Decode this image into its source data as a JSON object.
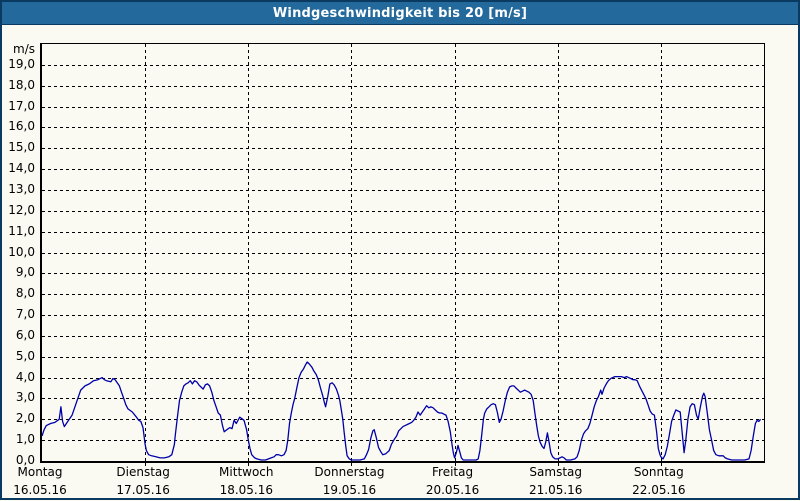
{
  "window": {
    "title": "Windgeschwindigkeit bis 20 [m/s]"
  },
  "colors": {
    "window_border": "#0a3a5f",
    "titlebar": "#23699b",
    "background": "#fafaf2",
    "line": "#0000aa",
    "grid": "#000000"
  },
  "chart_data": {
    "type": "line",
    "title": "Windgeschwindigkeit bis 20 [m/s]",
    "unit_label": "m/s",
    "xlabel": "",
    "ylabel": "m/s",
    "ylim": [
      0,
      20
    ],
    "y_tick_step": 1,
    "y_tick_labels": [
      "0,0",
      "1,0",
      "2,0",
      "3,0",
      "4,0",
      "5,0",
      "6,0",
      "7,0",
      "8,0",
      "9,0",
      "10,0",
      "11,0",
      "12,0",
      "13,0",
      "14,0",
      "15,0",
      "16,0",
      "17,0",
      "18,0",
      "19,0"
    ],
    "grid": "dashed horizontal every 1 m/s, dashed vertical at each day boundary",
    "legend": "none",
    "x_days": [
      {
        "name": "Montag",
        "date": "16.05.16"
      },
      {
        "name": "Dienstag",
        "date": "17.05.16"
      },
      {
        "name": "Mittwoch",
        "date": "18.05.16"
      },
      {
        "name": "Donnerstag",
        "date": "19.05.16"
      },
      {
        "name": "Freitag",
        "date": "20.05.16"
      },
      {
        "name": "Samstag",
        "date": "21.05.16"
      },
      {
        "name": "Sonntag",
        "date": "22.05.16"
      }
    ],
    "x_range_hours": [
      0,
      168
    ],
    "series": [
      {
        "name": "Windgeschwindigkeit",
        "color": "#0000aa",
        "points": [
          [
            0,
            1.2
          ],
          [
            0.5,
            1.5
          ],
          [
            1,
            1.7
          ],
          [
            2,
            1.8
          ],
          [
            3,
            1.85
          ],
          [
            4,
            2.0
          ],
          [
            4.4,
            2.6
          ],
          [
            4.8,
            1.9
          ],
          [
            5.2,
            1.65
          ],
          [
            6,
            1.9
          ],
          [
            7,
            2.2
          ],
          [
            8,
            2.8
          ],
          [
            9,
            3.4
          ],
          [
            10,
            3.6
          ],
          [
            11,
            3.7
          ],
          [
            12,
            3.85
          ],
          [
            13,
            3.9
          ],
          [
            14,
            4.0
          ],
          [
            14.5,
            3.9
          ],
          [
            15,
            3.85
          ],
          [
            16,
            3.8
          ],
          [
            16.5,
            3.95
          ],
          [
            17,
            3.9
          ],
          [
            18,
            3.6
          ],
          [
            18.5,
            3.3
          ],
          [
            19,
            3.0
          ],
          [
            19.5,
            2.7
          ],
          [
            20,
            2.5
          ],
          [
            21,
            2.35
          ],
          [
            22,
            2.1
          ],
          [
            22.5,
            1.95
          ],
          [
            23,
            1.9
          ],
          [
            23.5,
            1.6
          ],
          [
            24,
            0.8
          ],
          [
            24.3,
            0.5
          ],
          [
            24.8,
            0.3
          ],
          [
            25.5,
            0.25
          ],
          [
            26.5,
            0.2
          ],
          [
            27.5,
            0.15
          ],
          [
            28.5,
            0.15
          ],
          [
            29.5,
            0.2
          ],
          [
            30.2,
            0.3
          ],
          [
            30.8,
            0.8
          ],
          [
            31,
            1.2
          ],
          [
            31.5,
            2.1
          ],
          [
            32,
            2.9
          ],
          [
            32.5,
            3.3
          ],
          [
            33,
            3.6
          ],
          [
            33.5,
            3.7
          ],
          [
            34,
            3.75
          ],
          [
            34.5,
            3.85
          ],
          [
            35,
            3.7
          ],
          [
            35.5,
            3.85
          ],
          [
            36,
            3.8
          ],
          [
            36.5,
            3.65
          ],
          [
            37,
            3.55
          ],
          [
            37.5,
            3.45
          ],
          [
            38,
            3.65
          ],
          [
            38.5,
            3.7
          ],
          [
            39,
            3.6
          ],
          [
            39.5,
            3.3
          ],
          [
            40,
            2.9
          ],
          [
            40.5,
            2.6
          ],
          [
            41,
            2.3
          ],
          [
            41.5,
            2.2
          ],
          [
            42,
            1.7
          ],
          [
            42.4,
            1.4
          ],
          [
            43,
            1.5
          ],
          [
            43.7,
            1.6
          ],
          [
            44.2,
            1.55
          ],
          [
            44.7,
            1.95
          ],
          [
            45.2,
            1.8
          ],
          [
            46,
            2.1
          ],
          [
            46.4,
            2.05
          ],
          [
            47,
            1.95
          ],
          [
            47.6,
            1.5
          ],
          [
            48,
            1.0
          ],
          [
            48.4,
            0.6
          ],
          [
            48.8,
            0.3
          ],
          [
            49.5,
            0.15
          ],
          [
            50,
            0.1
          ],
          [
            51,
            0.05
          ],
          [
            52,
            0.05
          ],
          [
            52.7,
            0.1
          ],
          [
            53.3,
            0.15
          ],
          [
            54,
            0.2
          ],
          [
            54.5,
            0.3
          ],
          [
            55,
            0.3
          ],
          [
            55.7,
            0.25
          ],
          [
            56.3,
            0.3
          ],
          [
            56.8,
            0.5
          ],
          [
            57.2,
            1.0
          ],
          [
            57.6,
            1.8
          ],
          [
            58,
            2.3
          ],
          [
            58.4,
            2.7
          ],
          [
            58.8,
            3.0
          ],
          [
            59.3,
            3.5
          ],
          [
            59.8,
            4.0
          ],
          [
            60.3,
            4.25
          ],
          [
            60.8,
            4.4
          ],
          [
            61.3,
            4.6
          ],
          [
            61.7,
            4.75
          ],
          [
            62.2,
            4.65
          ],
          [
            62.8,
            4.5
          ],
          [
            63.3,
            4.3
          ],
          [
            63.8,
            4.15
          ],
          [
            64.3,
            3.9
          ],
          [
            64.8,
            3.5
          ],
          [
            65.3,
            3.15
          ],
          [
            65.7,
            2.8
          ],
          [
            66,
            2.6
          ],
          [
            66.5,
            3.1
          ],
          [
            67,
            3.7
          ],
          [
            67.5,
            3.75
          ],
          [
            68,
            3.65
          ],
          [
            68.5,
            3.45
          ],
          [
            69,
            3.15
          ],
          [
            69.3,
            2.9
          ],
          [
            69.7,
            2.4
          ],
          [
            70,
            2.0
          ],
          [
            70.3,
            1.4
          ],
          [
            70.7,
            0.7
          ],
          [
            71,
            0.25
          ],
          [
            71.5,
            0.1
          ],
          [
            72,
            0.05
          ],
          [
            73,
            0.05
          ],
          [
            74,
            0.05
          ],
          [
            75,
            0.1
          ],
          [
            75.5,
            0.3
          ],
          [
            76,
            0.55
          ],
          [
            76.5,
            1.1
          ],
          [
            77,
            1.45
          ],
          [
            77.3,
            1.5
          ],
          [
            77.8,
            1.1
          ],
          [
            78.3,
            0.65
          ],
          [
            78.8,
            0.45
          ],
          [
            79.3,
            0.3
          ],
          [
            80,
            0.35
          ],
          [
            80.8,
            0.5
          ],
          [
            81.3,
            0.8
          ],
          [
            82,
            1.05
          ],
          [
            82.5,
            1.2
          ],
          [
            83,
            1.45
          ],
          [
            83.5,
            1.55
          ],
          [
            84,
            1.65
          ],
          [
            84.5,
            1.7
          ],
          [
            85,
            1.75
          ],
          [
            85.5,
            1.8
          ],
          [
            86,
            1.85
          ],
          [
            86.5,
            1.95
          ],
          [
            87,
            2.1
          ],
          [
            87.5,
            2.35
          ],
          [
            88,
            2.2
          ],
          [
            88.5,
            2.35
          ],
          [
            89,
            2.5
          ],
          [
            89.5,
            2.65
          ],
          [
            90,
            2.55
          ],
          [
            90.5,
            2.6
          ],
          [
            91,
            2.55
          ],
          [
            91.5,
            2.45
          ],
          [
            92,
            2.35
          ],
          [
            92.5,
            2.3
          ],
          [
            93,
            2.3
          ],
          [
            93.5,
            2.25
          ],
          [
            94,
            2.2
          ],
          [
            94.5,
            1.9
          ],
          [
            95,
            1.4
          ],
          [
            95.4,
            0.8
          ],
          [
            95.7,
            0.4
          ],
          [
            96,
            0.15
          ],
          [
            96.4,
            0.4
          ],
          [
            96.8,
            0.75
          ],
          [
            97.2,
            0.45
          ],
          [
            97.6,
            0.15
          ],
          [
            98,
            0.05
          ],
          [
            99,
            0.05
          ],
          [
            100,
            0.05
          ],
          [
            101,
            0.05
          ],
          [
            101.5,
            0.1
          ],
          [
            101.9,
            0.5
          ],
          [
            102.3,
            1.2
          ],
          [
            102.7,
            2.0
          ],
          [
            103,
            2.3
          ],
          [
            103.5,
            2.5
          ],
          [
            104,
            2.6
          ],
          [
            104.5,
            2.7
          ],
          [
            105,
            2.75
          ],
          [
            105.5,
            2.7
          ],
          [
            106,
            2.3
          ],
          [
            106.4,
            1.85
          ],
          [
            106.8,
            2.0
          ],
          [
            107.3,
            2.4
          ],
          [
            107.8,
            2.9
          ],
          [
            108.3,
            3.3
          ],
          [
            108.8,
            3.55
          ],
          [
            109.3,
            3.6
          ],
          [
            109.8,
            3.6
          ],
          [
            110.3,
            3.5
          ],
          [
            110.8,
            3.4
          ],
          [
            111.3,
            3.3
          ],
          [
            111.8,
            3.35
          ],
          [
            112.3,
            3.4
          ],
          [
            112.8,
            3.35
          ],
          [
            113.3,
            3.3
          ],
          [
            113.8,
            3.2
          ],
          [
            114.3,
            2.9
          ],
          [
            114.7,
            2.3
          ],
          [
            115.1,
            1.7
          ],
          [
            115.5,
            1.2
          ],
          [
            115.9,
            0.9
          ],
          [
            116.4,
            0.7
          ],
          [
            116.8,
            0.6
          ],
          [
            117.2,
            0.9
          ],
          [
            117.6,
            1.35
          ],
          [
            118,
            0.9
          ],
          [
            118.4,
            0.4
          ],
          [
            118.8,
            0.2
          ],
          [
            119.4,
            0.1
          ],
          [
            120,
            0.1
          ],
          [
            120.5,
            0.15
          ],
          [
            121,
            0.2
          ],
          [
            121.5,
            0.15
          ],
          [
            122,
            0.05
          ],
          [
            123,
            0.05
          ],
          [
            124,
            0.1
          ],
          [
            124.5,
            0.2
          ],
          [
            125,
            0.5
          ],
          [
            125.5,
            1.0
          ],
          [
            126,
            1.3
          ],
          [
            126.5,
            1.45
          ],
          [
            127,
            1.55
          ],
          [
            127.5,
            1.8
          ],
          [
            128,
            2.2
          ],
          [
            128.5,
            2.6
          ],
          [
            129,
            2.9
          ],
          [
            129.5,
            3.1
          ],
          [
            130,
            3.4
          ],
          [
            130.3,
            3.2
          ],
          [
            130.8,
            3.5
          ],
          [
            131.3,
            3.7
          ],
          [
            131.8,
            3.85
          ],
          [
            132.3,
            3.95
          ],
          [
            132.8,
            4.0
          ],
          [
            133.3,
            4.05
          ],
          [
            134,
            4.05
          ],
          [
            134.8,
            4.05
          ],
          [
            135.5,
            4.0
          ],
          [
            136,
            4.05
          ],
          [
            136.5,
            4.0
          ],
          [
            137,
            3.95
          ],
          [
            137.5,
            3.9
          ],
          [
            138,
            3.9
          ],
          [
            138.5,
            3.85
          ],
          [
            139,
            3.6
          ],
          [
            139.5,
            3.4
          ],
          [
            140,
            3.2
          ],
          [
            140.5,
            3.0
          ],
          [
            141,
            2.7
          ],
          [
            141.5,
            2.4
          ],
          [
            142,
            2.25
          ],
          [
            142.5,
            2.2
          ],
          [
            143,
            1.4
          ],
          [
            143.4,
            0.6
          ],
          [
            143.8,
            0.3
          ],
          [
            144,
            0.2
          ],
          [
            144.5,
            0.1
          ],
          [
            145,
            0.3
          ],
          [
            145.5,
            0.7
          ],
          [
            146,
            1.3
          ],
          [
            146.5,
            1.9
          ],
          [
            147,
            2.2
          ],
          [
            147.5,
            2.45
          ],
          [
            148,
            2.4
          ],
          [
            148.5,
            2.35
          ],
          [
            149,
            1.3
          ],
          [
            149.4,
            0.4
          ],
          [
            149.8,
            1.0
          ],
          [
            150.3,
            2.0
          ],
          [
            150.8,
            2.6
          ],
          [
            151.3,
            2.75
          ],
          [
            151.8,
            2.7
          ],
          [
            152.3,
            2.2
          ],
          [
            152.7,
            2.0
          ],
          [
            153.2,
            2.6
          ],
          [
            153.7,
            3.1
          ],
          [
            154,
            3.25
          ],
          [
            154.3,
            3.1
          ],
          [
            154.8,
            2.3
          ],
          [
            155.3,
            1.5
          ],
          [
            155.8,
            1.0
          ],
          [
            156.3,
            0.5
          ],
          [
            156.8,
            0.3
          ],
          [
            157.5,
            0.25
          ],
          [
            158.5,
            0.25
          ],
          [
            159,
            0.15
          ],
          [
            159.5,
            0.1
          ],
          [
            160.5,
            0.05
          ],
          [
            162,
            0.05
          ],
          [
            163.5,
            0.05
          ],
          [
            164.5,
            0.1
          ],
          [
            165,
            0.5
          ],
          [
            165.5,
            1.2
          ],
          [
            166,
            1.8
          ],
          [
            166.4,
            1.95
          ],
          [
            166.8,
            1.9
          ],
          [
            167.2,
            2.0
          ]
        ]
      }
    ]
  }
}
